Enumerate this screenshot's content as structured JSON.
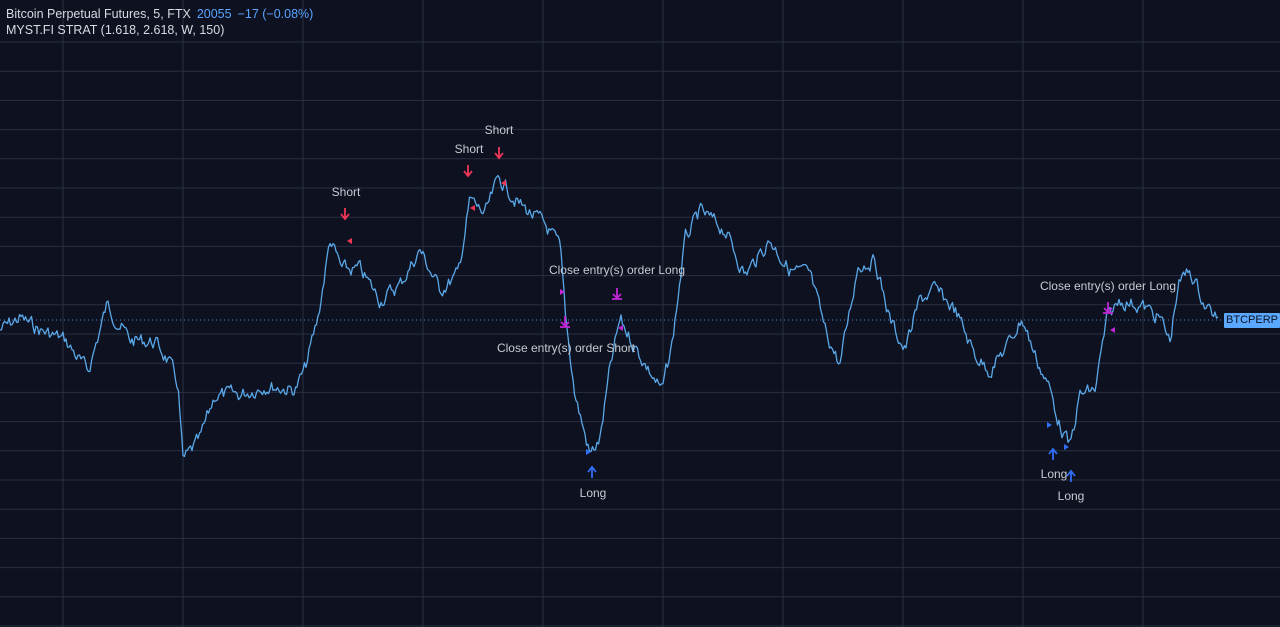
{
  "header": {
    "symbol_title": "Bitcoin Perpetual Futures, 5, FTX",
    "last_price": "20055",
    "change": "−17 (−0.08%)",
    "indicator": "MYST.FI STRAT (1.618, 2.618, W, 150)"
  },
  "price_label": "BTCPERP",
  "colors": {
    "background": "#0d1120",
    "grid": "#2a3142",
    "line": "#5aa8e8",
    "short": "#f23658",
    "long": "#2f6ff5",
    "close": "#c026d3",
    "label_text": "#c7cbd3",
    "dotted_line": "#5aa8ff"
  },
  "signals": [
    {
      "kind": "short",
      "text": "Short"
    },
    {
      "kind": "short",
      "text": "Short"
    },
    {
      "kind": "short",
      "text": "Short"
    },
    {
      "kind": "close",
      "text": "Close entry(s) order Long"
    },
    {
      "kind": "close",
      "text": "Close entry(s) order Short"
    },
    {
      "kind": "long",
      "text": "Long"
    },
    {
      "kind": "close",
      "text": "Close entry(s) order Long"
    },
    {
      "kind": "long",
      "text": "Long"
    },
    {
      "kind": "long",
      "text": "Long"
    }
  ]
}
